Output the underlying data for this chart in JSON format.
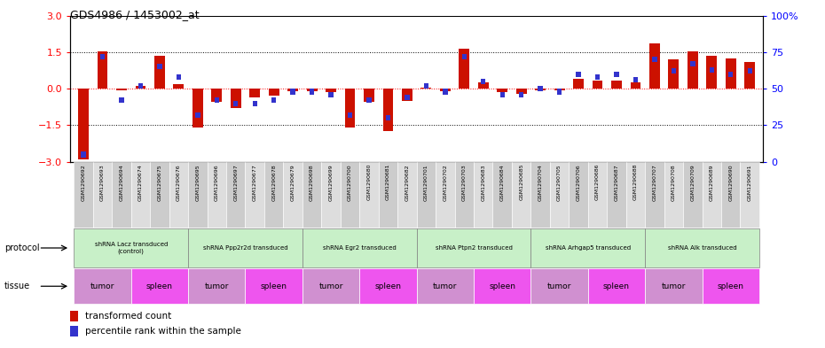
{
  "title": "GDS4986 / 1453002_at",
  "samples": [
    "GSM1290692",
    "GSM1290693",
    "GSM1290694",
    "GSM1290674",
    "GSM1290675",
    "GSM1290676",
    "GSM1290695",
    "GSM1290696",
    "GSM1290697",
    "GSM1290677",
    "GSM1290678",
    "GSM1290679",
    "GSM1290698",
    "GSM1290699",
    "GSM1290700",
    "GSM1290680",
    "GSM1290681",
    "GSM1290682",
    "GSM1290701",
    "GSM1290702",
    "GSM1290703",
    "GSM1290683",
    "GSM1290684",
    "GSM1290685",
    "GSM1290704",
    "GSM1290705",
    "GSM1290706",
    "GSM1290686",
    "GSM1290687",
    "GSM1290688",
    "GSM1290707",
    "GSM1290708",
    "GSM1290709",
    "GSM1290689",
    "GSM1290690",
    "GSM1290691"
  ],
  "red_values": [
    -2.9,
    1.55,
    -0.05,
    0.1,
    1.35,
    0.2,
    -1.6,
    -0.55,
    -0.8,
    -0.35,
    -0.3,
    -0.1,
    -0.1,
    -0.15,
    -1.6,
    -0.55,
    -1.75,
    -0.5,
    0.05,
    -0.1,
    1.65,
    0.25,
    -0.15,
    -0.2,
    -0.05,
    -0.05,
    0.4,
    0.35,
    0.35,
    0.25,
    1.85,
    1.2,
    1.55,
    1.35,
    1.25,
    1.1
  ],
  "blue_values_pct": [
    5,
    72,
    42,
    52,
    65,
    58,
    32,
    42,
    40,
    40,
    42,
    48,
    48,
    46,
    32,
    42,
    30,
    44,
    52,
    48,
    72,
    55,
    46,
    46,
    50,
    48,
    60,
    58,
    60,
    56,
    70,
    62,
    67,
    63,
    60,
    62
  ],
  "protocols": [
    {
      "label": "shRNA Lacz transduced\n(control)",
      "start": 0,
      "end": 5,
      "color": "#c8f0c8"
    },
    {
      "label": "shRNA Ppp2r2d transduced",
      "start": 6,
      "end": 11,
      "color": "#c8f0c8"
    },
    {
      "label": "shRNA Egr2 transduced",
      "start": 12,
      "end": 17,
      "color": "#c8f0c8"
    },
    {
      "label": "shRNA Ptpn2 transduced",
      "start": 18,
      "end": 23,
      "color": "#c8f0c8"
    },
    {
      "label": "shRNA Arhgap5 transduced",
      "start": 24,
      "end": 29,
      "color": "#c8f0c8"
    },
    {
      "label": "shRNA Alk transduced",
      "start": 30,
      "end": 35,
      "color": "#c8f0c8"
    }
  ],
  "tissues": [
    {
      "label": "tumor",
      "start": 0,
      "end": 2,
      "color": "#d090d0"
    },
    {
      "label": "spleen",
      "start": 3,
      "end": 5,
      "color": "#ee55ee"
    },
    {
      "label": "tumor",
      "start": 6,
      "end": 8,
      "color": "#d090d0"
    },
    {
      "label": "spleen",
      "start": 9,
      "end": 11,
      "color": "#ee55ee"
    },
    {
      "label": "tumor",
      "start": 12,
      "end": 14,
      "color": "#d090d0"
    },
    {
      "label": "spleen",
      "start": 15,
      "end": 17,
      "color": "#ee55ee"
    },
    {
      "label": "tumor",
      "start": 18,
      "end": 20,
      "color": "#d090d0"
    },
    {
      "label": "spleen",
      "start": 21,
      "end": 23,
      "color": "#ee55ee"
    },
    {
      "label": "tumor",
      "start": 24,
      "end": 26,
      "color": "#d090d0"
    },
    {
      "label": "spleen",
      "start": 27,
      "end": 29,
      "color": "#ee55ee"
    },
    {
      "label": "tumor",
      "start": 30,
      "end": 32,
      "color": "#d090d0"
    },
    {
      "label": "spleen",
      "start": 33,
      "end": 35,
      "color": "#ee55ee"
    }
  ],
  "ylim": [
    -3,
    3
  ],
  "yticks_left": [
    -3,
    -1.5,
    0,
    1.5,
    3
  ],
  "right_yticks_pct": [
    0,
    25,
    50,
    75,
    100
  ],
  "red_color": "#cc1100",
  "blue_color": "#3333cc",
  "bg_color": "#ffffff",
  "sample_bg_colors": [
    "#cccccc",
    "#dddddd"
  ]
}
